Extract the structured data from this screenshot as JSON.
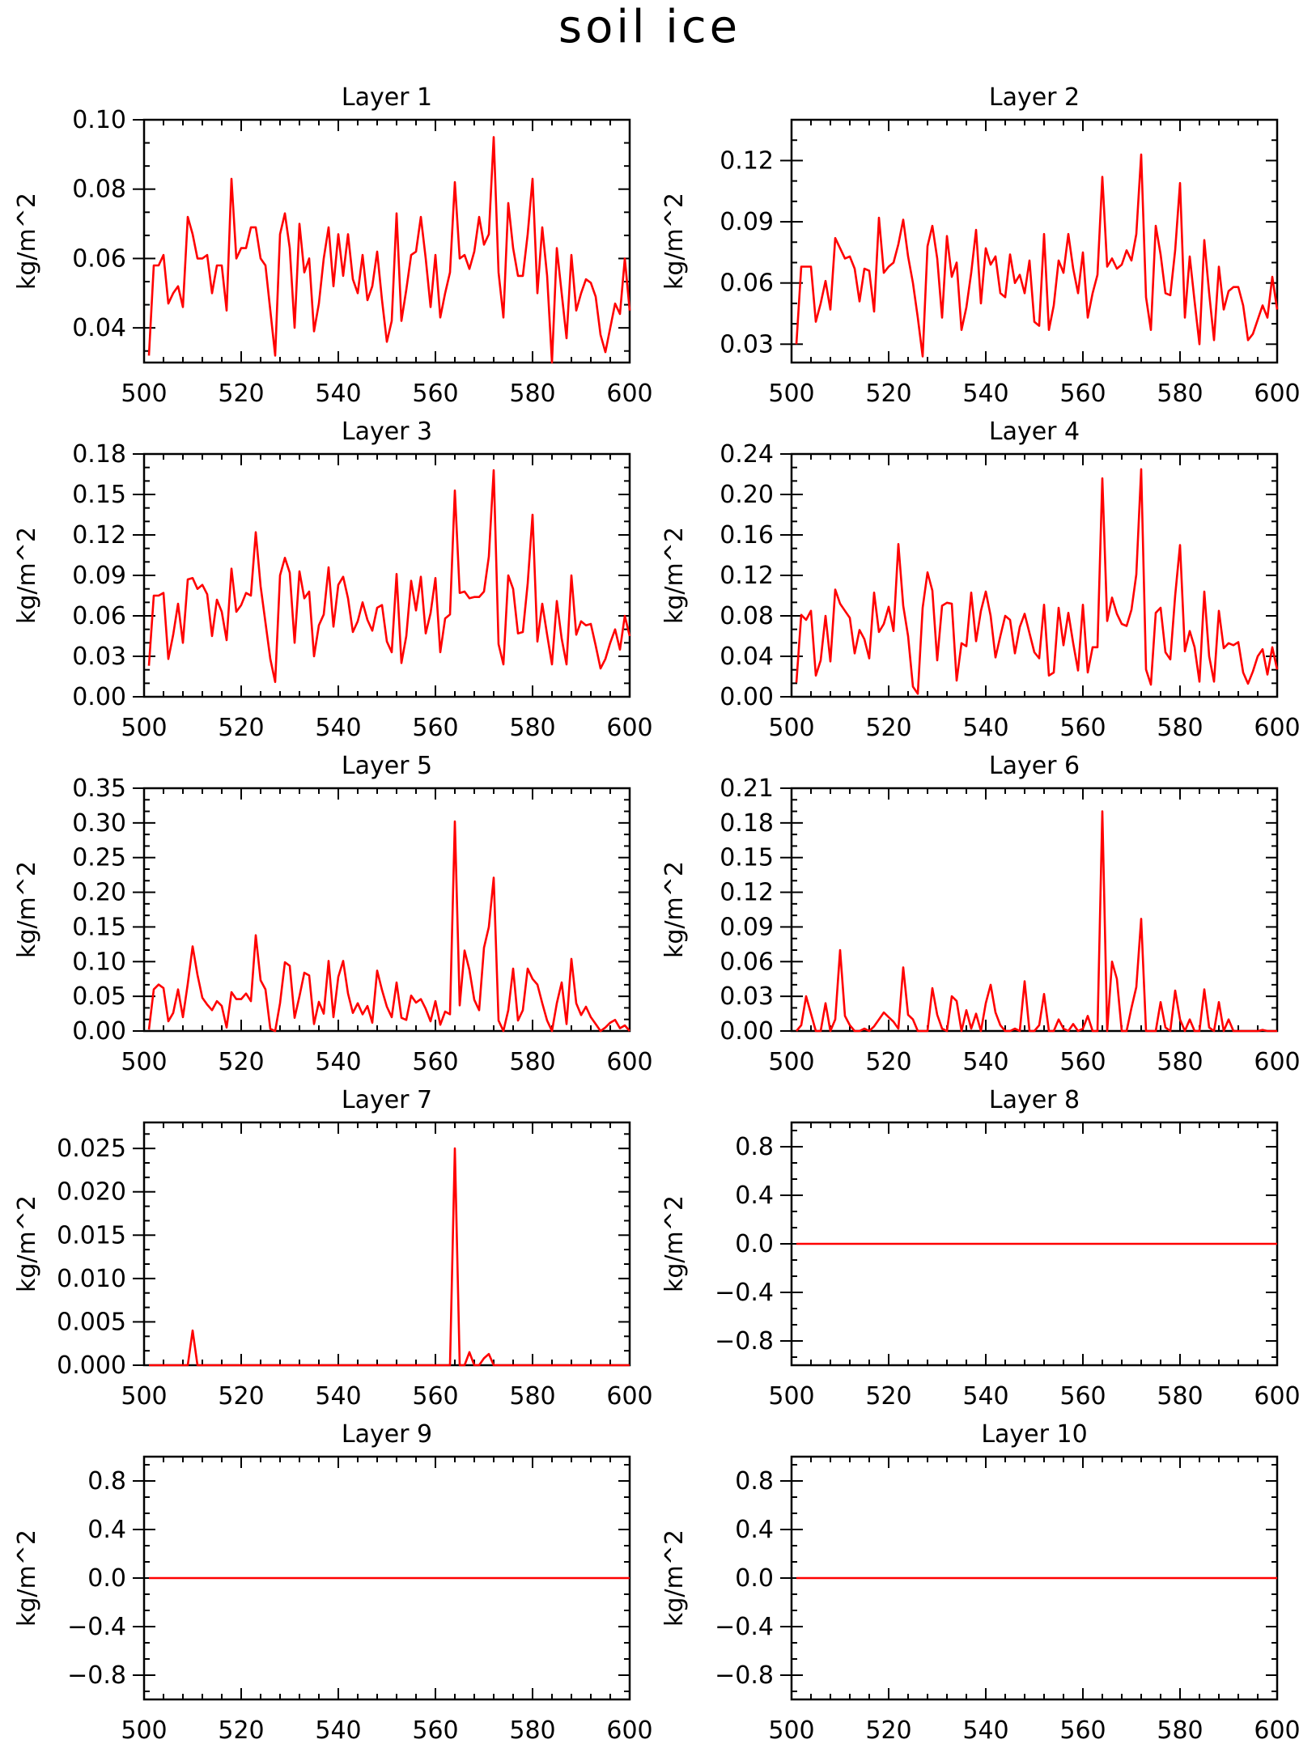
{
  "figure_title": "soil ice",
  "colors": {
    "line": "#ff0000",
    "axis": "#000000",
    "background": "#ffffff"
  },
  "chart_data": [
    {
      "type": "line",
      "title": "Layer 1",
      "ylabel": "kg/m^2",
      "xlim": [
        500,
        600
      ],
      "xticks": [
        "500",
        "520",
        "540",
        "560",
        "580",
        "600"
      ],
      "ylim": [
        0.03,
        0.1
      ],
      "yticks": [
        "0.04",
        "0.06",
        "0.08",
        "0.10"
      ],
      "grid": false,
      "x_start": 501,
      "x_step": 1,
      "series": [
        {
          "values": [
            0.032,
            0.058,
            0.058,
            0.061,
            0.047,
            0.05,
            0.052,
            0.046,
            0.072,
            0.067,
            0.06,
            0.06,
            0.061,
            0.05,
            0.058,
            0.058,
            0.045,
            0.083,
            0.06,
            0.063,
            0.063,
            0.069,
            0.069,
            0.06,
            0.058,
            0.045,
            0.032,
            0.067,
            0.073,
            0.063,
            0.04,
            0.07,
            0.056,
            0.06,
            0.039,
            0.047,
            0.06,
            0.069,
            0.052,
            0.067,
            0.055,
            0.067,
            0.054,
            0.05,
            0.061,
            0.048,
            0.052,
            0.062,
            0.048,
            0.036,
            0.042,
            0.073,
            0.042,
            0.051,
            0.061,
            0.062,
            0.072,
            0.06,
            0.046,
            0.061,
            0.043,
            0.05,
            0.056,
            0.082,
            0.06,
            0.061,
            0.057,
            0.062,
            0.072,
            0.064,
            0.067,
            0.095,
            0.056,
            0.043,
            0.076,
            0.063,
            0.055,
            0.055,
            0.067,
            0.083,
            0.05,
            0.069,
            0.055,
            0.03,
            0.063,
            0.05,
            0.037,
            0.061,
            0.045,
            0.05,
            0.054,
            0.053,
            0.049,
            0.038,
            0.033,
            0.04,
            0.047,
            0.044,
            0.06,
            0.045
          ]
        }
      ]
    },
    {
      "type": "line",
      "title": "Layer 2",
      "ylabel": "kg/m^2",
      "xlim": [
        500,
        600
      ],
      "xticks": [
        "500",
        "520",
        "540",
        "560",
        "580",
        "600"
      ],
      "ylim": [
        0.021,
        0.14
      ],
      "yticks": [
        "0.03",
        "0.06",
        "0.09",
        "0.12"
      ],
      "grid": false,
      "x_start": 501,
      "x_step": 1,
      "series": [
        {
          "values": [
            0.03,
            0.068,
            0.068,
            0.068,
            0.041,
            0.05,
            0.061,
            0.047,
            0.082,
            0.077,
            0.072,
            0.073,
            0.067,
            0.051,
            0.067,
            0.066,
            0.046,
            0.092,
            0.065,
            0.068,
            0.07,
            0.079,
            0.091,
            0.073,
            0.06,
            0.043,
            0.024,
            0.078,
            0.088,
            0.072,
            0.043,
            0.083,
            0.063,
            0.07,
            0.037,
            0.048,
            0.065,
            0.086,
            0.05,
            0.077,
            0.069,
            0.073,
            0.055,
            0.053,
            0.074,
            0.06,
            0.064,
            0.055,
            0.071,
            0.041,
            0.039,
            0.084,
            0.037,
            0.049,
            0.071,
            0.065,
            0.084,
            0.067,
            0.055,
            0.075,
            0.043,
            0.055,
            0.064,
            0.112,
            0.068,
            0.072,
            0.067,
            0.069,
            0.076,
            0.071,
            0.084,
            0.123,
            0.053,
            0.037,
            0.088,
            0.074,
            0.055,
            0.054,
            0.076,
            0.109,
            0.043,
            0.073,
            0.051,
            0.03,
            0.081,
            0.055,
            0.032,
            0.068,
            0.047,
            0.056,
            0.058,
            0.058,
            0.049,
            0.032,
            0.035,
            0.042,
            0.049,
            0.043,
            0.063,
            0.047
          ]
        }
      ]
    },
    {
      "type": "line",
      "title": "Layer 3",
      "ylabel": "kg/m^2",
      "xlim": [
        500,
        600
      ],
      "xticks": [
        "500",
        "520",
        "540",
        "560",
        "580",
        "600"
      ],
      "ylim": [
        0,
        0.18
      ],
      "yticks": [
        "0.00",
        "0.03",
        "0.06",
        "0.09",
        "0.12",
        "0.15",
        "0.18"
      ],
      "grid": false,
      "x_start": 501,
      "x_step": 1,
      "series": [
        {
          "values": [
            0.023,
            0.075,
            0.075,
            0.077,
            0.028,
            0.046,
            0.069,
            0.04,
            0.087,
            0.088,
            0.08,
            0.083,
            0.076,
            0.045,
            0.072,
            0.063,
            0.042,
            0.095,
            0.063,
            0.068,
            0.077,
            0.075,
            0.122,
            0.082,
            0.055,
            0.028,
            0.011,
            0.09,
            0.103,
            0.092,
            0.04,
            0.093,
            0.073,
            0.078,
            0.03,
            0.053,
            0.061,
            0.096,
            0.052,
            0.083,
            0.089,
            0.073,
            0.048,
            0.056,
            0.07,
            0.057,
            0.049,
            0.066,
            0.068,
            0.041,
            0.033,
            0.091,
            0.025,
            0.045,
            0.086,
            0.064,
            0.089,
            0.047,
            0.062,
            0.088,
            0.033,
            0.058,
            0.061,
            0.153,
            0.077,
            0.078,
            0.073,
            0.074,
            0.074,
            0.078,
            0.104,
            0.168,
            0.039,
            0.024,
            0.09,
            0.08,
            0.047,
            0.048,
            0.084,
            0.135,
            0.041,
            0.069,
            0.046,
            0.024,
            0.071,
            0.043,
            0.024,
            0.09,
            0.046,
            0.056,
            0.053,
            0.054,
            0.038,
            0.021,
            0.028,
            0.04,
            0.05,
            0.035,
            0.06,
            0.045
          ]
        }
      ]
    },
    {
      "type": "line",
      "title": "Layer 4",
      "ylabel": "kg/m^2",
      "xlim": [
        500,
        600
      ],
      "xticks": [
        "500",
        "520",
        "540",
        "560",
        "580",
        "600"
      ],
      "ylim": [
        0,
        0.24
      ],
      "yticks": [
        "0.00",
        "0.04",
        "0.08",
        "0.12",
        "0.16",
        "0.20",
        "0.24"
      ],
      "grid": false,
      "x_start": 501,
      "x_step": 1,
      "series": [
        {
          "values": [
            0.014,
            0.081,
            0.076,
            0.085,
            0.021,
            0.036,
            0.08,
            0.035,
            0.106,
            0.092,
            0.085,
            0.078,
            0.043,
            0.066,
            0.057,
            0.038,
            0.103,
            0.064,
            0.072,
            0.089,
            0.065,
            0.151,
            0.09,
            0.06,
            0.01,
            0.003,
            0.088,
            0.123,
            0.105,
            0.036,
            0.09,
            0.093,
            0.092,
            0.016,
            0.053,
            0.05,
            0.103,
            0.055,
            0.085,
            0.104,
            0.08,
            0.039,
            0.06,
            0.08,
            0.076,
            0.043,
            0.069,
            0.082,
            0.063,
            0.044,
            0.038,
            0.091,
            0.021,
            0.024,
            0.088,
            0.051,
            0.083,
            0.053,
            0.026,
            0.091,
            0.024,
            0.049,
            0.049,
            0.216,
            0.075,
            0.098,
            0.082,
            0.072,
            0.07,
            0.086,
            0.121,
            0.225,
            0.027,
            0.012,
            0.083,
            0.088,
            0.044,
            0.037,
            0.1,
            0.15,
            0.045,
            0.065,
            0.049,
            0.015,
            0.104,
            0.04,
            0.015,
            0.085,
            0.048,
            0.053,
            0.051,
            0.054,
            0.024,
            0.013,
            0.025,
            0.04,
            0.047,
            0.022,
            0.049,
            0.027
          ]
        }
      ]
    },
    {
      "type": "line",
      "title": "Layer 5",
      "ylabel": "kg/m^2",
      "xlim": [
        500,
        600
      ],
      "xticks": [
        "500",
        "520",
        "540",
        "560",
        "580",
        "600"
      ],
      "ylim": [
        0,
        0.35
      ],
      "yticks": [
        "0.00",
        "0.05",
        "0.10",
        "0.15",
        "0.20",
        "0.25",
        "0.30",
        "0.35"
      ],
      "grid": false,
      "x_start": 501,
      "x_step": 1,
      "series": [
        {
          "values": [
            0.002,
            0.06,
            0.067,
            0.062,
            0.014,
            0.026,
            0.06,
            0.02,
            0.068,
            0.122,
            0.081,
            0.048,
            0.038,
            0.03,
            0.043,
            0.036,
            0.005,
            0.056,
            0.046,
            0.046,
            0.054,
            0.043,
            0.138,
            0.073,
            0.06,
            0.003,
            0.0,
            0.04,
            0.099,
            0.094,
            0.019,
            0.05,
            0.084,
            0.08,
            0.01,
            0.042,
            0.025,
            0.101,
            0.02,
            0.078,
            0.101,
            0.054,
            0.026,
            0.04,
            0.024,
            0.036,
            0.012,
            0.087,
            0.059,
            0.035,
            0.02,
            0.07,
            0.019,
            0.016,
            0.051,
            0.041,
            0.046,
            0.032,
            0.014,
            0.043,
            0.009,
            0.028,
            0.024,
            0.302,
            0.037,
            0.116,
            0.088,
            0.045,
            0.03,
            0.12,
            0.15,
            0.221,
            0.015,
            0.0,
            0.03,
            0.09,
            0.015,
            0.03,
            0.09,
            0.075,
            0.067,
            0.04,
            0.015,
            0.0,
            0.04,
            0.07,
            0.01,
            0.104,
            0.04,
            0.023,
            0.035,
            0.02,
            0.01,
            0.0,
            0.005,
            0.012,
            0.016,
            0.004,
            0.008,
            0.0
          ]
        }
      ]
    },
    {
      "type": "line",
      "title": "Layer 6",
      "ylabel": "kg/m^2",
      "xlim": [
        500,
        600
      ],
      "xticks": [
        "500",
        "520",
        "540",
        "560",
        "580",
        "600"
      ],
      "ylim": [
        0,
        0.21
      ],
      "yticks": [
        "0.00",
        "0.03",
        "0.06",
        "0.09",
        "0.12",
        "0.15",
        "0.18",
        "0.21"
      ],
      "grid": false,
      "x_start": 501,
      "x_step": 1,
      "series": [
        {
          "values": [
            0.0,
            0.005,
            0.03,
            0.015,
            0.0,
            0.0,
            0.024,
            0.0,
            0.01,
            0.07,
            0.013,
            0.005,
            0.0,
            0.0,
            0.002,
            0.0,
            0.004,
            0.01,
            0.016,
            0.012,
            0.008,
            0.002,
            0.055,
            0.014,
            0.01,
            0.0,
            0.0,
            0.0,
            0.037,
            0.014,
            0.002,
            0.0,
            0.03,
            0.026,
            0.0,
            0.018,
            0.002,
            0.015,
            0.0,
            0.024,
            0.04,
            0.016,
            0.005,
            0.0,
            0.0,
            0.002,
            0.0,
            0.043,
            0.0,
            0.0,
            0.005,
            0.032,
            0.0,
            0.0,
            0.01,
            0.002,
            0.0,
            0.006,
            0.0,
            0.002,
            0.013,
            0.0,
            0.0,
            0.19,
            0.0,
            0.06,
            0.045,
            0.0,
            0.0,
            0.02,
            0.038,
            0.097,
            0.0,
            0.0,
            0.0,
            0.025,
            0.003,
            0.0,
            0.035,
            0.01,
            0.0,
            0.01,
            0.0,
            0.0,
            0.036,
            0.003,
            0.0,
            0.025,
            0.0,
            0.01,
            0.0,
            0.0,
            0.0,
            0.0,
            0.0,
            0.0,
            0.001,
            0.0,
            0.0,
            0.0
          ]
        }
      ]
    },
    {
      "type": "line",
      "title": "Layer 7",
      "ylabel": "kg/m^2",
      "xlim": [
        500,
        600
      ],
      "xticks": [
        "500",
        "520",
        "540",
        "560",
        "580",
        "600"
      ],
      "ylim": [
        0,
        0.028
      ],
      "yticks": [
        "0.000",
        "0.005",
        "0.010",
        "0.015",
        "0.020",
        "0.025"
      ],
      "grid": false,
      "x_start": 501,
      "x_step": 1,
      "series": [
        {
          "values": [
            0.0,
            0.0,
            0.0,
            0.0,
            0.0,
            0.0,
            0.0,
            0.0,
            0.0,
            0.004,
            0.0,
            0.0,
            0.0,
            0.0,
            0.0,
            0.0,
            0.0,
            0.0,
            0.0,
            0.0,
            0.0,
            0.0,
            0.0,
            0.0,
            0.0,
            0.0,
            0.0,
            0.0,
            0.0,
            0.0,
            0.0,
            0.0,
            0.0,
            0.0,
            0.0,
            0.0,
            0.0,
            0.0,
            0.0,
            0.0,
            0.0,
            0.0,
            0.0,
            0.0,
            0.0,
            0.0,
            0.0,
            0.0,
            0.0,
            0.0,
            0.0,
            0.0,
            0.0,
            0.0,
            0.0,
            0.0,
            0.0,
            0.0,
            0.0,
            0.0,
            0.0,
            0.0,
            0.0,
            0.025,
            0.0,
            0.0,
            0.0015,
            0.0,
            0.0,
            0.0008,
            0.0013,
            0.0,
            0.0,
            0.0,
            0.0,
            0.0,
            0.0,
            0.0,
            0.0,
            0.0,
            0.0,
            0.0,
            0.0,
            0.0,
            0.0,
            0.0,
            0.0,
            0.0,
            0.0,
            0.0,
            0.0,
            0.0,
            0.0,
            0.0,
            0.0,
            0.0,
            0.0,
            0.0,
            0.0,
            0.0
          ]
        }
      ]
    },
    {
      "type": "line",
      "title": "Layer 8",
      "ylabel": "kg/m^2",
      "xlim": [
        500,
        600
      ],
      "xticks": [
        "500",
        "520",
        "540",
        "560",
        "580",
        "600"
      ],
      "ylim": [
        -1,
        1
      ],
      "yticks": [
        "−0.8",
        "−0.4",
        "0.0",
        "0.4",
        "0.8"
      ],
      "grid": false,
      "x": [
        501,
        600
      ],
      "series": [
        {
          "values": [
            0,
            0
          ]
        }
      ]
    },
    {
      "type": "line",
      "title": "Layer 9",
      "ylabel": "kg/m^2",
      "xlim": [
        500,
        600
      ],
      "xticks": [
        "500",
        "520",
        "540",
        "560",
        "580",
        "600"
      ],
      "ylim": [
        -1,
        1
      ],
      "yticks": [
        "−0.8",
        "−0.4",
        "0.0",
        "0.4",
        "0.8"
      ],
      "grid": false,
      "x": [
        501,
        600
      ],
      "series": [
        {
          "values": [
            0,
            0
          ]
        }
      ]
    },
    {
      "type": "line",
      "title": "Layer 10",
      "ylabel": "kg/m^2",
      "xlim": [
        500,
        600
      ],
      "xticks": [
        "500",
        "520",
        "540",
        "560",
        "580",
        "600"
      ],
      "ylim": [
        -1,
        1
      ],
      "yticks": [
        "−0.8",
        "−0.4",
        "0.0",
        "0.4",
        "0.8"
      ],
      "grid": false,
      "x": [
        501,
        600
      ],
      "series": [
        {
          "values": [
            0,
            0
          ]
        }
      ]
    }
  ]
}
